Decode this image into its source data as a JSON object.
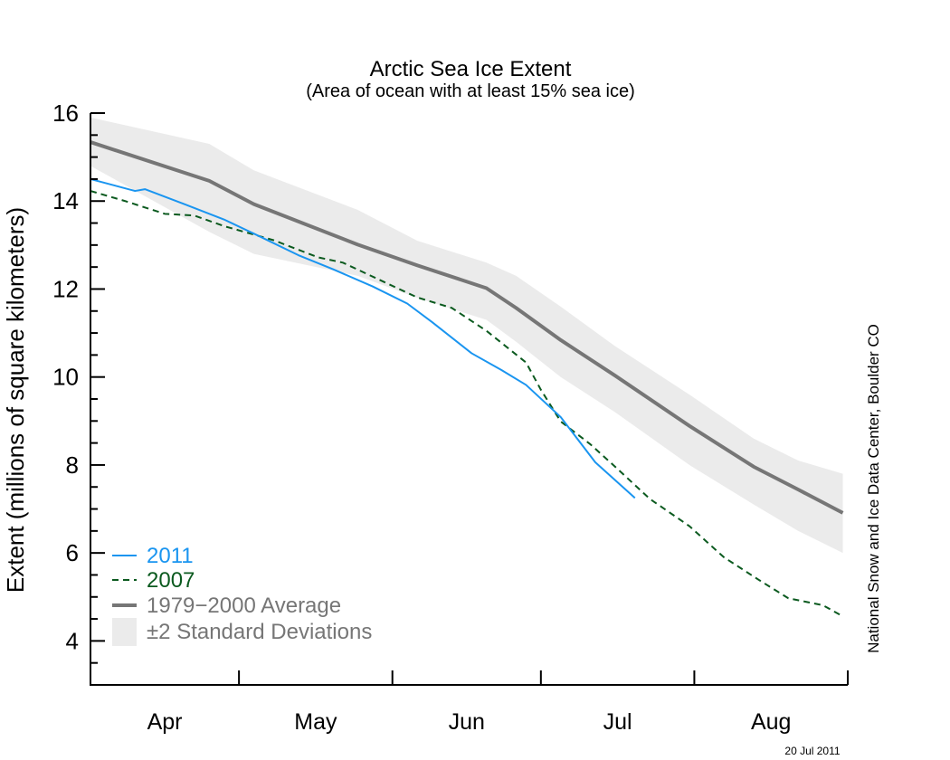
{
  "chart_data": {
    "type": "line",
    "title": "Arctic Sea Ice Extent",
    "subtitle": "(Area of ocean with at least 15% sea ice)",
    "ylabel": "Extent (millions of square kilometers)",
    "xlabel": "",
    "ylim": [
      3,
      16
    ],
    "xlim": [
      "Apr 1",
      "Sep 1"
    ],
    "y_ticks": [
      "4",
      "6",
      "8",
      "10",
      "12",
      "14",
      "16"
    ],
    "x_ticks": [
      "Apr",
      "May",
      "Jun",
      "Jul",
      "Aug"
    ],
    "grid": false,
    "legend_position": "bottom-left",
    "credit": "National Snow and Ice Data Center, Boulder CO",
    "date_stamp": "20 Jul 2011",
    "colors": {
      "2011": "#1a95f0",
      "2007": "#0b5a1f",
      "average": "#767676",
      "band": "#ebebeb"
    },
    "series": [
      {
        "name": "2011",
        "style": "solid",
        "x": [
          "Apr 1",
          "Apr 10",
          "Apr 12",
          "Apr 20",
          "Apr 28",
          "May 4",
          "May 13",
          "May 20",
          "May 28",
          "Jun 4",
          "Jun 9",
          "Jun 17",
          "Jun 23",
          "Jun 28",
          "Jul 5",
          "Jul 12",
          "Jul 20"
        ],
        "y": [
          14.5,
          14.23,
          14.27,
          13.93,
          13.58,
          13.26,
          12.77,
          12.45,
          12.06,
          11.67,
          11.25,
          10.54,
          10.16,
          9.82,
          9.09,
          8.06,
          7.25
        ]
      },
      {
        "name": "2007",
        "style": "dashed",
        "x": [
          "Apr 1",
          "Apr 8",
          "Apr 16",
          "Apr 22",
          "Apr 28",
          "May 8",
          "May 17",
          "May 22",
          "May 29",
          "Jun 6",
          "Jun 13",
          "Jun 20",
          "Jun 28",
          "Jul 1",
          "Jul 5",
          "Jul 11",
          "Jul 16",
          "Jul 23",
          "Jul 31",
          "Aug 7",
          "Aug 14",
          "Aug 20",
          "Aug 27",
          "Aug 31"
        ],
        "y": [
          14.23,
          14.0,
          13.71,
          13.67,
          13.43,
          13.11,
          12.72,
          12.6,
          12.23,
          11.81,
          11.57,
          11.05,
          10.33,
          9.71,
          8.99,
          8.47,
          7.96,
          7.23,
          6.61,
          5.9,
          5.39,
          4.97,
          4.81,
          4.56
        ]
      },
      {
        "name": "1979−2000 Average",
        "style": "thick",
        "x": [
          "Apr 1",
          "Apr 25",
          "May 4",
          "May 25",
          "Jun 6",
          "Jun 20",
          "Jun 26",
          "Jul 5",
          "Jul 16",
          "Jul 31",
          "Aug 13",
          "Aug 22",
          "Aug 31"
        ],
        "y": [
          15.34,
          14.46,
          13.93,
          13.01,
          12.54,
          12.02,
          11.57,
          10.84,
          10.03,
          8.89,
          7.96,
          7.44,
          6.91
        ]
      }
    ],
    "band": {
      "name": "±2 Standard Deviations",
      "x": [
        "Apr 1",
        "Apr 25",
        "May 4",
        "May 25",
        "Jun 6",
        "Jun 20",
        "Jun 26",
        "Jul 5",
        "Jul 16",
        "Jul 31",
        "Aug 13",
        "Aug 22",
        "Aug 31"
      ],
      "upper": [
        15.9,
        15.3,
        14.7,
        13.8,
        13.1,
        12.6,
        12.3,
        11.6,
        10.7,
        9.6,
        8.6,
        8.1,
        7.8
      ],
      "lower": [
        14.8,
        13.3,
        12.8,
        12.3,
        11.8,
        11.3,
        10.8,
        10.0,
        9.2,
        8.0,
        7.1,
        6.5,
        6.0
      ]
    }
  }
}
